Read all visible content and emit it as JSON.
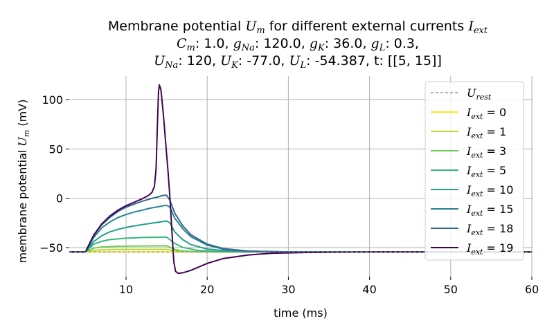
{
  "title": {
    "line1_prefix": "Membrane potential ",
    "um_symbol": "U",
    "um_sub": "m",
    "line1_middle": " for different external currents ",
    "iext_symbol": "I",
    "iext_sub": "ext",
    "cm": "C",
    "cm_sub": "m",
    "cm_val": ": 1.0, ",
    "gna": "g",
    "gna_sub": "Na",
    "gna_val": ": 120.0, ",
    "gk": "g",
    "gk_sub": "K",
    "gk_val": ": 36.0, ",
    "gl": "g",
    "gl_sub": "L",
    "gl_val": ": 0.3,",
    "una": "U",
    "una_sub": "Na",
    "una_val": ": 120, ",
    "uk": "U",
    "uk_sub": "K",
    "uk_val": ": -77.0, ",
    "ul": "U",
    "ul_sub": "L",
    "ul_val": ": -54.387, t: [[5, 15]]"
  },
  "chart_data": {
    "type": "line",
    "xlabel": "time (ms)",
    "ylabel_prefix": "membrane potential ",
    "ylabel_symbol": "U",
    "ylabel_sub": "m",
    "ylabel_suffix": " (mV)",
    "xlim": [
      3,
      60
    ],
    "ylim": [
      -60,
      120
    ],
    "xticks": [
      10,
      20,
      30,
      40,
      50,
      60
    ],
    "yticks": [
      -50,
      0,
      50,
      100
    ],
    "grid": true,
    "legend_placement": "upper-right",
    "rest_line": {
      "label_symbol": "U",
      "label_sub": "rest",
      "value": -54.387,
      "color": "#888888"
    },
    "series": [
      {
        "label_symbol": "I",
        "label_sub": "ext",
        "label_rest": " = 0",
        "current": 0,
        "color": "#fde725",
        "points": [
          [
            3,
            -54.4
          ],
          [
            60,
            -54.4
          ]
        ]
      },
      {
        "label_symbol": "I",
        "label_sub": "ext",
        "label_rest": " = 1",
        "current": 1,
        "color": "#b5de2b",
        "points": [
          [
            3,
            -54.4
          ],
          [
            5,
            -54.4
          ],
          [
            6,
            -52.9
          ],
          [
            7,
            -52.3
          ],
          [
            9,
            -51.9
          ],
          [
            12,
            -51.8
          ],
          [
            15,
            -51.8
          ],
          [
            16,
            -53.2
          ],
          [
            17,
            -53.9
          ],
          [
            19,
            -54.3
          ],
          [
            22,
            -54.4
          ],
          [
            60,
            -54.4
          ]
        ]
      },
      {
        "label_symbol": "I",
        "label_sub": "ext",
        "label_rest": " = 3",
        "current": 3,
        "color": "#6ece58",
        "points": [
          [
            3,
            -54.4
          ],
          [
            5,
            -54.4
          ],
          [
            6,
            -50.6
          ],
          [
            7,
            -49.3
          ],
          [
            9,
            -48.6
          ],
          [
            12,
            -48.3
          ],
          [
            15,
            -48.2
          ],
          [
            16,
            -51.8
          ],
          [
            17,
            -53.4
          ],
          [
            19,
            -54.2
          ],
          [
            22,
            -54.4
          ],
          [
            60,
            -54.4
          ]
        ]
      },
      {
        "label_symbol": "I",
        "label_sub": "ext",
        "label_rest": " = 5",
        "current": 5,
        "color": "#35b779",
        "points": [
          [
            3,
            -54.4
          ],
          [
            5,
            -54.4
          ],
          [
            6,
            -46.6
          ],
          [
            7,
            -43.6
          ],
          [
            8,
            -41.9
          ],
          [
            10,
            -40.5
          ],
          [
            12,
            -39.8
          ],
          [
            15,
            -39.3
          ],
          [
            16,
            -45.8
          ],
          [
            17,
            -49.8
          ],
          [
            19,
            -53.0
          ],
          [
            22,
            -54.2
          ],
          [
            26,
            -54.4
          ],
          [
            60,
            -54.4
          ]
        ]
      },
      {
        "label_symbol": "I",
        "label_sub": "ext",
        "label_rest": " = 10",
        "current": 10,
        "color": "#1f9e89",
        "points": [
          [
            3,
            -54.4
          ],
          [
            5,
            -54.4
          ],
          [
            6,
            -44.0
          ],
          [
            7,
            -38.0
          ],
          [
            8,
            -34.0
          ],
          [
            9,
            -31.5
          ],
          [
            10,
            -29.5
          ],
          [
            11,
            -28.0
          ],
          [
            12,
            -26.7
          ],
          [
            13,
            -25.5
          ],
          [
            14,
            -24.2
          ],
          [
            15,
            -23.0
          ],
          [
            15.4,
            -25
          ],
          [
            16,
            -34
          ],
          [
            17,
            -42
          ],
          [
            18,
            -47
          ],
          [
            20,
            -51.5
          ],
          [
            23,
            -53.6
          ],
          [
            27,
            -54.3
          ],
          [
            32,
            -54.4
          ],
          [
            60,
            -54.4
          ]
        ]
      },
      {
        "label_symbol": "I",
        "label_sub": "ext",
        "label_rest": " = 15",
        "current": 15,
        "color": "#26828e",
        "points": [
          [
            3,
            -54.4
          ],
          [
            5,
            -54.4
          ],
          [
            6,
            -40.0
          ],
          [
            7,
            -30.0
          ],
          [
            8,
            -24.0
          ],
          [
            9,
            -19.5
          ],
          [
            10,
            -16.5
          ],
          [
            11,
            -14.0
          ],
          [
            12,
            -12.0
          ],
          [
            13,
            -10.0
          ],
          [
            14,
            -8.5
          ],
          [
            15,
            -7.0
          ],
          [
            15.4,
            -9
          ],
          [
            16,
            -20
          ],
          [
            17,
            -31
          ],
          [
            18,
            -39
          ],
          [
            20,
            -47.5
          ],
          [
            22,
            -51.5
          ],
          [
            25,
            -53.6
          ],
          [
            30,
            -54.3
          ],
          [
            35,
            -54.4
          ],
          [
            60,
            -54.4
          ]
        ]
      },
      {
        "label_symbol": "I",
        "label_sub": "ext",
        "label_rest": " = 18",
        "current": 18,
        "color": "#31688e",
        "points": [
          [
            3,
            -54.4
          ],
          [
            5,
            -54.4
          ],
          [
            6,
            -38.0
          ],
          [
            7,
            -27.0
          ],
          [
            8,
            -19.5
          ],
          [
            9,
            -13.5
          ],
          [
            10,
            -9.0
          ],
          [
            11,
            -6.0
          ],
          [
            12,
            -3.0
          ],
          [
            13,
            -0.5
          ],
          [
            14,
            1.5
          ],
          [
            14.6,
            3.0
          ],
          [
            15,
            3.0
          ],
          [
            15.4,
            -2
          ],
          [
            16,
            -15
          ],
          [
            17,
            -28
          ],
          [
            18,
            -37
          ],
          [
            20,
            -46.5
          ],
          [
            22,
            -51
          ],
          [
            25,
            -53.5
          ],
          [
            30,
            -54.3
          ],
          [
            36,
            -54.4
          ],
          [
            60,
            -54.4
          ]
        ]
      },
      {
        "label_symbol": "I",
        "label_sub": "ext",
        "label_rest": " = 19",
        "current": 19,
        "color": "#440154",
        "points": [
          [
            3,
            -54.4
          ],
          [
            5,
            -54.4
          ],
          [
            6,
            -37.5
          ],
          [
            7,
            -26.0
          ],
          [
            8,
            -18.0
          ],
          [
            9,
            -12.0
          ],
          [
            10,
            -7.5
          ],
          [
            11,
            -4.0
          ],
          [
            12,
            -0.5
          ],
          [
            12.8,
            3.0
          ],
          [
            13.2,
            6.0
          ],
          [
            13.5,
            12.0
          ],
          [
            13.7,
            30.0
          ],
          [
            13.85,
            70.0
          ],
          [
            14.0,
            108.0
          ],
          [
            14.1,
            115.0
          ],
          [
            14.3,
            110.0
          ],
          [
            14.6,
            85.0
          ],
          [
            14.9,
            55.0
          ],
          [
            15.2,
            25.0
          ],
          [
            15.45,
            -5.0
          ],
          [
            15.7,
            -40.0
          ],
          [
            15.9,
            -65.0
          ],
          [
            16.1,
            -74.0
          ],
          [
            16.4,
            -76.0
          ],
          [
            17,
            -75.5
          ],
          [
            18,
            -73.0
          ],
          [
            20,
            -66.0
          ],
          [
            22,
            -61.0
          ],
          [
            25,
            -57.5
          ],
          [
            28,
            -55.7
          ],
          [
            32,
            -55.0
          ],
          [
            36,
            -54.6
          ],
          [
            42,
            -54.4
          ],
          [
            60,
            -54.4
          ]
        ]
      }
    ]
  }
}
